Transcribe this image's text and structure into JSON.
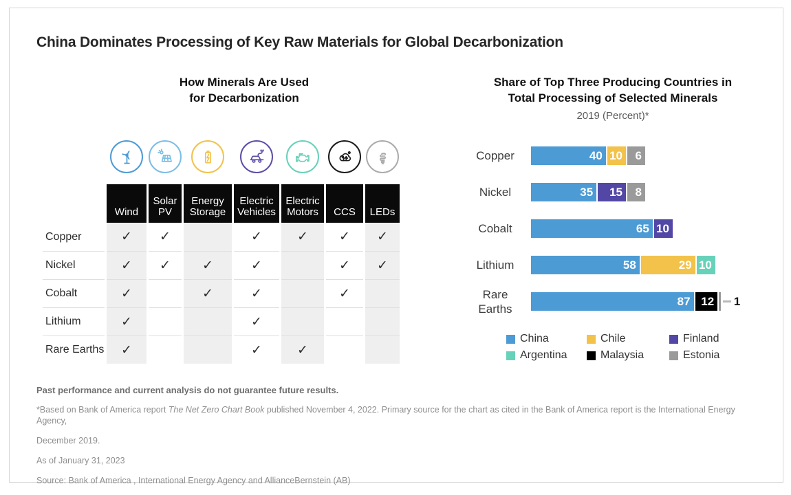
{
  "page": {
    "title": "China Dominates Processing of Key Raw Materials for Global Decarbonization"
  },
  "usage_panel": {
    "title_line1": "How Minerals Are Used",
    "title_line2": "for Decarbonization",
    "check_glyph": "✓",
    "columns": [
      {
        "label": "Wind",
        "icon": "wind-turbine-icon",
        "color": "#4D9BD5",
        "shaded": true
      },
      {
        "label": "Solar PV",
        "icon": "solar-panel-icon",
        "color": "#7BBDE6",
        "shaded": false
      },
      {
        "label": "Energy Storage",
        "icon": "battery-icon",
        "color": "#F2C24A",
        "shaded": true
      },
      {
        "label": "Electric Vehicles",
        "icon": "electric-car-icon",
        "color": "#5B4EA8",
        "shaded": false
      },
      {
        "label": "Electric Motors",
        "icon": "engine-icon",
        "color": "#67D1B9",
        "shaded": true
      },
      {
        "label": "CCS",
        "icon": "carbon-capture-icon",
        "color": "#1B1B1B",
        "shaded": false
      },
      {
        "label": "LEDs",
        "icon": "led-bulb-icon",
        "color": "#ABABAB",
        "shaded": true
      }
    ],
    "rows": [
      {
        "label": "Copper",
        "checks": [
          1,
          1,
          0,
          1,
          1,
          1,
          1
        ]
      },
      {
        "label": "Nickel",
        "checks": [
          1,
          1,
          1,
          1,
          0,
          1,
          1
        ]
      },
      {
        "label": "Cobalt",
        "checks": [
          1,
          0,
          1,
          1,
          0,
          1,
          0
        ]
      },
      {
        "label": "Lithium",
        "checks": [
          1,
          0,
          0,
          1,
          0,
          0,
          0
        ]
      },
      {
        "label": "Rare Earths",
        "checks": [
          1,
          0,
          0,
          1,
          1,
          0,
          0
        ]
      }
    ]
  },
  "chart_data": {
    "type": "stacked-bar-horizontal",
    "title_line1": "Share of Top Three Producing Countries in",
    "title_line2": "Total Processing of Selected Minerals",
    "subtitle": "2019 (Percent)*",
    "unit": "percent",
    "x_max": 100,
    "axis_visible": false,
    "grid": false,
    "legend_position": "bottom",
    "categories": [
      "Copper",
      "Nickel",
      "Cobalt",
      "Lithium",
      "Rare Earths"
    ],
    "series_colors": {
      "China": "#4D9BD5",
      "Chile": "#F2C24A",
      "Finland": "#5347A6",
      "Argentina": "#67D1B9",
      "Malaysia": "#000000",
      "Estonia": "#9A9A9A"
    },
    "bars": [
      {
        "category": "Copper",
        "segments": [
          {
            "country": "China",
            "value": 40
          },
          {
            "country": "Chile",
            "value": 10
          },
          {
            "country": "Estonia",
            "value": 6
          }
        ]
      },
      {
        "category": "Nickel",
        "segments": [
          {
            "country": "China",
            "value": 35
          },
          {
            "country": "Finland",
            "value": 15
          },
          {
            "country": "Estonia",
            "value": 8
          }
        ]
      },
      {
        "category": "Cobalt",
        "segments": [
          {
            "country": "China",
            "value": 65
          },
          {
            "country": "Finland",
            "value": 10
          }
        ]
      },
      {
        "category": "Lithium",
        "segments": [
          {
            "country": "China",
            "value": 58
          },
          {
            "country": "Chile",
            "value": 29
          },
          {
            "country": "Argentina",
            "value": 10
          }
        ]
      },
      {
        "category": "Rare Earths",
        "segments": [
          {
            "country": "China",
            "value": 87
          },
          {
            "country": "Malaysia",
            "value": 12
          },
          {
            "country": "Estonia",
            "value": 1,
            "label_outside": true
          }
        ]
      }
    ],
    "legend": [
      {
        "label": "China",
        "color": "#4D9BD5"
      },
      {
        "label": "Chile",
        "color": "#F2C24A"
      },
      {
        "label": "Finland",
        "color": "#5347A6"
      },
      {
        "label": "Argentina",
        "color": "#67D1B9"
      },
      {
        "label": "Malaysia",
        "color": "#000000"
      },
      {
        "label": "Estonia",
        "color": "#9A9A9A"
      }
    ]
  },
  "footnotes": {
    "disclaimer": "Past performance and current analysis do not guarantee future results.",
    "note_prefix": "*Based on Bank of America report ",
    "note_italic": "The Net Zero Chart Book",
    "note_suffix": " published November 4, 2022. Primary source for the chart as cited in the Bank of America  report is the International Energy Agency,",
    "note_line2": "December 2019.",
    "as_of": "As of January 31, 2023",
    "source": "Source: Bank of America , International Energy Agency and AllianceBernstein (AB)"
  }
}
